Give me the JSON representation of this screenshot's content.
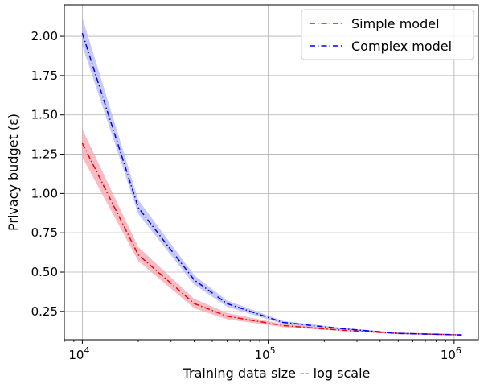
{
  "chart_data": {
    "type": "line",
    "xlabel": "Training data size -- log scale",
    "ylabel": "Privacy budget (ε)",
    "xscale": "log",
    "xlim": [
      8000,
      1350000
    ],
    "ylim": [
      0.07,
      2.2
    ],
    "grid": true,
    "legend_position": "top-right",
    "x_ticks": [
      {
        "value": 10000,
        "base": "10",
        "exp": "4"
      },
      {
        "value": 100000,
        "base": "10",
        "exp": "5"
      },
      {
        "value": 1000000,
        "base": "10",
        "exp": "6"
      }
    ],
    "y_ticks": [
      {
        "value": 0.25,
        "label": "0.25"
      },
      {
        "value": 0.5,
        "label": "0.50"
      },
      {
        "value": 0.75,
        "label": "0.75"
      },
      {
        "value": 1.0,
        "label": "1.00"
      },
      {
        "value": 1.25,
        "label": "1.25"
      },
      {
        "value": 1.5,
        "label": "1.50"
      },
      {
        "value": 1.75,
        "label": "1.75"
      },
      {
        "value": 2.0,
        "label": "2.00"
      }
    ],
    "series": [
      {
        "name": "Simple model",
        "color": "#ff0000",
        "band_color": "#f4a6b0",
        "x": [
          10000,
          20000,
          40000,
          60000,
          120000,
          250000,
          500000,
          1100000
        ],
        "y": [
          1.32,
          0.61,
          0.3,
          0.22,
          0.16,
          0.13,
          0.11,
          0.1
        ],
        "lower": [
          1.23,
          0.57,
          0.27,
          0.2,
          0.15,
          0.125,
          0.105,
          0.097
        ],
        "upper": [
          1.41,
          0.66,
          0.33,
          0.24,
          0.17,
          0.14,
          0.115,
          0.105
        ]
      },
      {
        "name": "Complex model",
        "color": "#0000ff",
        "band_color": "#b4b8f2",
        "x": [
          10000,
          20000,
          40000,
          60000,
          120000,
          250000,
          500000,
          1100000
        ],
        "y": [
          2.02,
          0.91,
          0.45,
          0.3,
          0.18,
          0.14,
          0.11,
          0.1
        ],
        "lower": [
          1.94,
          0.87,
          0.42,
          0.28,
          0.17,
          0.13,
          0.105,
          0.097
        ],
        "upper": [
          2.12,
          0.96,
          0.48,
          0.32,
          0.19,
          0.145,
          0.115,
          0.105
        ]
      }
    ]
  }
}
